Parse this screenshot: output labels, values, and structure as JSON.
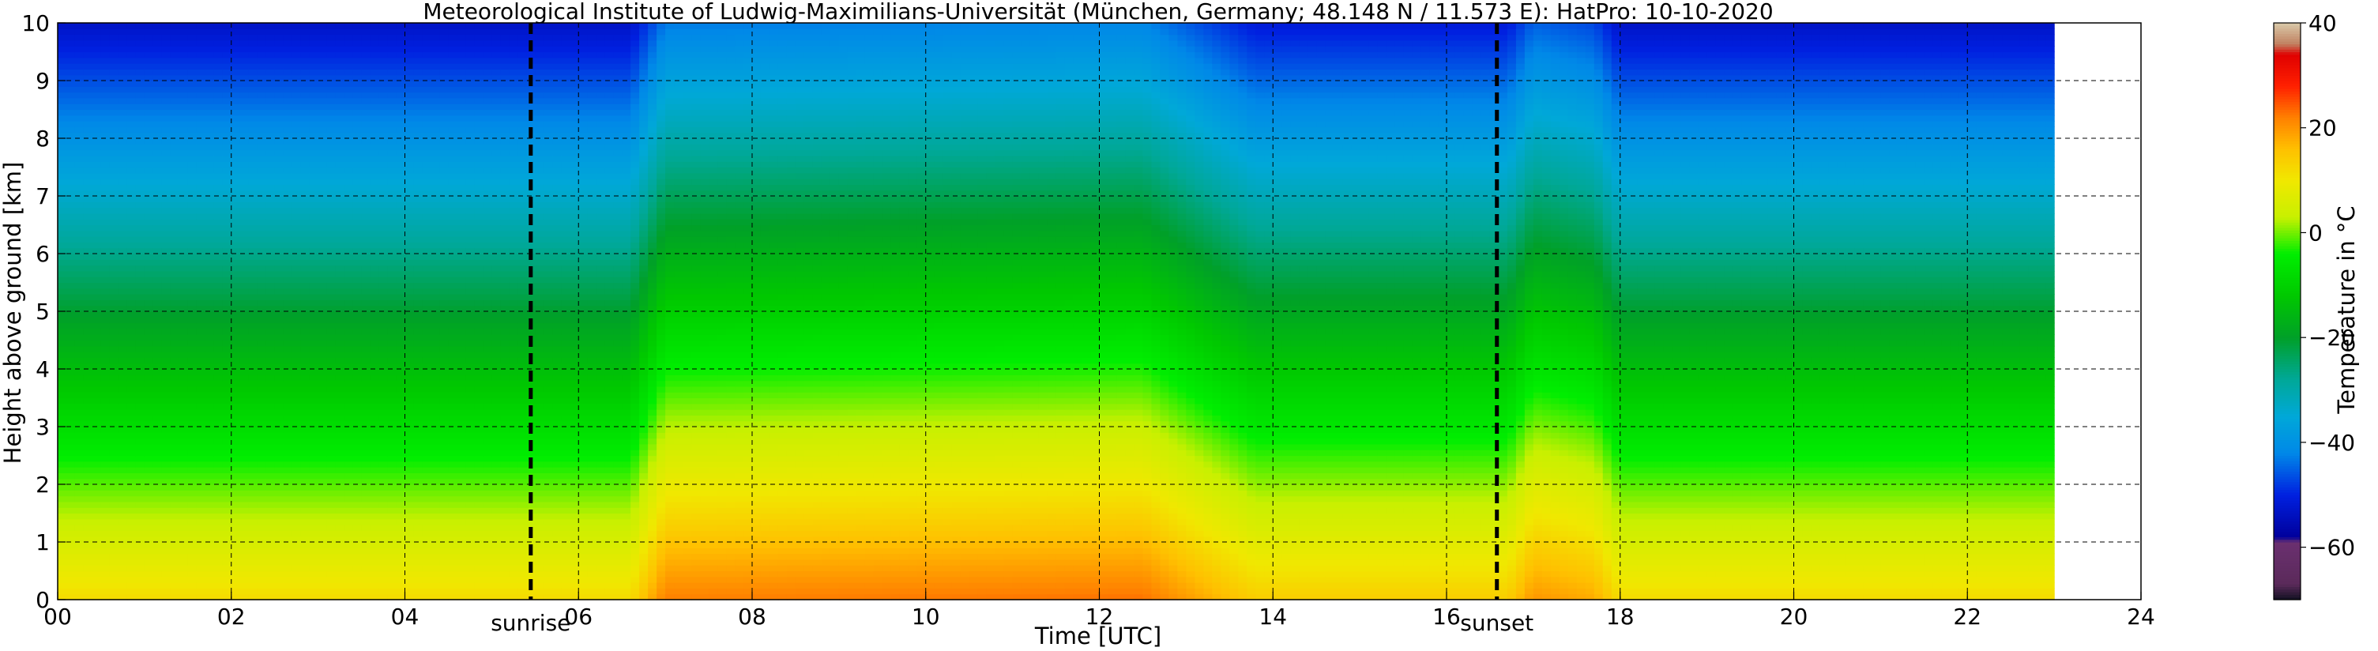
{
  "chart_data": {
    "type": "heatmap",
    "title": "Meteorological Institute of Ludwig-Maximilians-Universität (München, Germany; 48.148 N / 11.573 E):    HatPro: 10-10-2020",
    "xlabel": "Time [UTC]",
    "ylabel": "Height above ground [km]",
    "xlim": [
      0,
      24
    ],
    "ylim": [
      0,
      10
    ],
    "data_end_hour": 23,
    "x_ticks": [
      0,
      2,
      4,
      6,
      8,
      10,
      12,
      14,
      16,
      18,
      20,
      22,
      24
    ],
    "x_tick_labels": [
      "00",
      "02",
      "04",
      "06",
      "08",
      "10",
      "12",
      "14",
      "16",
      "18",
      "20",
      "22",
      "24"
    ],
    "y_ticks": [
      0,
      1,
      2,
      3,
      4,
      5,
      6,
      7,
      8,
      9,
      10
    ],
    "y_tick_labels": [
      "0",
      "1",
      "2",
      "3",
      "4",
      "5",
      "6",
      "7",
      "8",
      "9",
      "10"
    ],
    "grid": true,
    "events": [
      {
        "label": "sunrise",
        "hour": 5.45
      },
      {
        "label": "sunset",
        "hour": 16.58
      }
    ],
    "colorbar": {
      "label": "Temperature in °C",
      "range": [
        -70,
        40
      ],
      "ticks": [
        40,
        20,
        0,
        -20,
        -40,
        -60
      ],
      "tick_labels": [
        "40",
        "20",
        "0",
        "−20",
        "−40",
        "−60"
      ]
    },
    "surface_temperature_c": [
      {
        "hour": 0,
        "value": 12
      },
      {
        "hour": 6.6,
        "value": 12
      },
      {
        "hour": 7.0,
        "value": 22
      },
      {
        "hour": 12.5,
        "value": 23
      },
      {
        "hour": 13.8,
        "value": 14
      },
      {
        "hour": 16.7,
        "value": 14
      },
      {
        "hour": 17.0,
        "value": 20
      },
      {
        "hour": 17.7,
        "value": 18
      },
      {
        "hour": 18.0,
        "value": 12
      },
      {
        "hour": 23,
        "value": 12
      }
    ],
    "lapse_rate_c_per_km": 6.5,
    "tropopause_km": 11,
    "colorscale": [
      {
        "value": -70,
        "color": "#101020"
      },
      {
        "value": -67,
        "color": "#5a2a5a"
      },
      {
        "value": -59,
        "color": "#6a3070"
      },
      {
        "value": -58,
        "color": "#00009c"
      },
      {
        "value": -50,
        "color": "#0020e0"
      },
      {
        "value": -42,
        "color": "#0088e8"
      },
      {
        "value": -35,
        "color": "#00a8d8"
      },
      {
        "value": -28,
        "color": "#00a898"
      },
      {
        "value": -20,
        "color": "#00a028"
      },
      {
        "value": -12,
        "color": "#00c800"
      },
      {
        "value": -4,
        "color": "#00ee00"
      },
      {
        "value": 3,
        "color": "#c8f000"
      },
      {
        "value": 10,
        "color": "#f0e800"
      },
      {
        "value": 16,
        "color": "#ffc000"
      },
      {
        "value": 22,
        "color": "#ff8000"
      },
      {
        "value": 28,
        "color": "#ff2000"
      },
      {
        "value": 34,
        "color": "#e00000"
      },
      {
        "value": 36,
        "color": "#c08060"
      },
      {
        "value": 40,
        "color": "#d8c8a8"
      }
    ]
  }
}
